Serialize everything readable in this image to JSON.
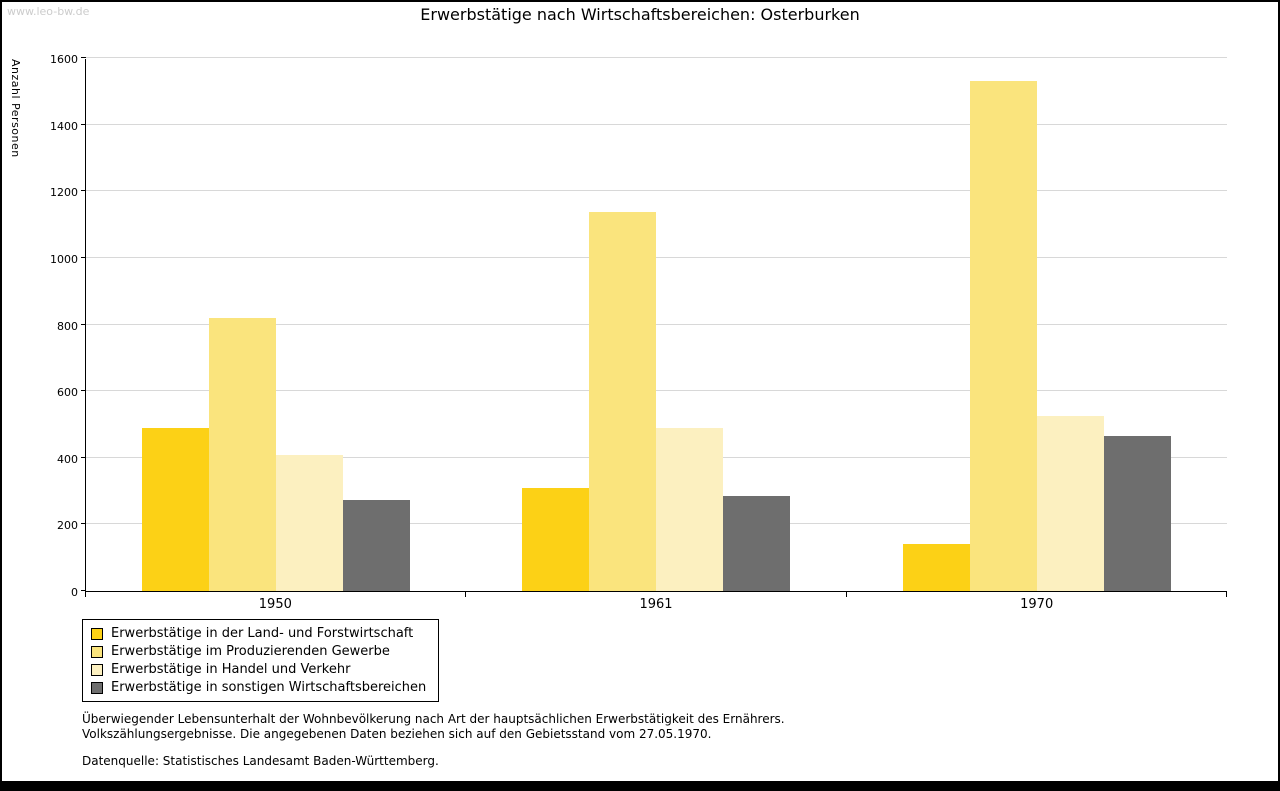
{
  "page": {
    "watermark": "www.leo-bw.de",
    "title": "Erwerbstätige nach Wirtschaftsbereichen: Osterburken"
  },
  "chart_data": {
    "type": "bar",
    "title": "Erwerbstätige nach Wirtschaftsbereichen: Osterburken",
    "xlabel": "",
    "ylabel": "Anzahl Personen",
    "ylim": [
      0,
      1600
    ],
    "ytick_step": 200,
    "grid": true,
    "legend_position": "bottom-left",
    "categories": [
      "1950",
      "1961",
      "1970"
    ],
    "series": [
      {
        "name": "Erwerbstätige in der Land- und Forstwirtschaft",
        "color": "#FCD116",
        "values": [
          490,
          310,
          140
        ]
      },
      {
        "name": "Erwerbstätige im Produzierenden Gewerbe",
        "color": "#FAE47D",
        "values": [
          820,
          1140,
          1535
        ]
      },
      {
        "name": "Erwerbstätige in Handel und Verkehr",
        "color": "#FCF0C0",
        "values": [
          410,
          490,
          525
        ]
      },
      {
        "name": "Erwerbstätige in sonstigen Wirtschaftsbereichen",
        "color": "#6E6E6E",
        "values": [
          275,
          285,
          465
        ]
      }
    ]
  },
  "footnotes": {
    "line1": "Überwiegender Lebensunterhalt der Wohnbevölkerung nach Art der hauptsächlichen Erwerbstätigkeit des Ernährers.",
    "line2": "Volkszählungsergebnisse. Die angegebenen Daten beziehen sich auf den Gebietsstand vom 27.05.1970.",
    "source": "Datenquelle: Statistisches Landesamt Baden-Württemberg."
  }
}
